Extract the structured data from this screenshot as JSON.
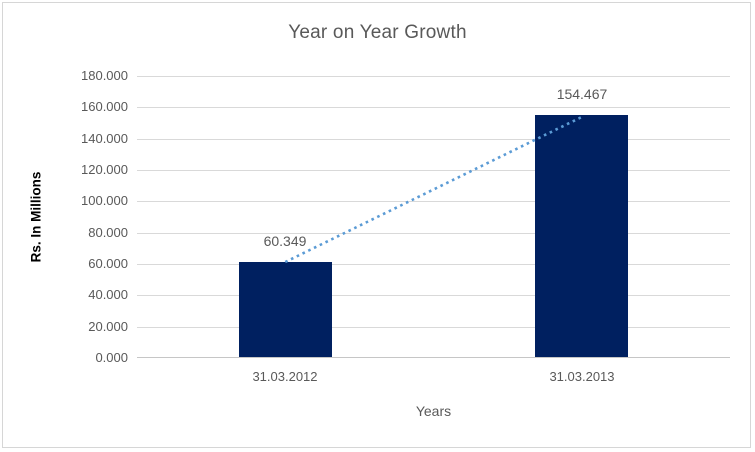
{
  "chart_data": {
    "type": "bar",
    "title": "Year on Year Growth",
    "xlabel": "Years",
    "ylabel": "Rs. In Millions",
    "categories": [
      "31.03.2012",
      "31.03.2013"
    ],
    "values": [
      60.349,
      154.467
    ],
    "value_labels": [
      "60.349",
      "154.467"
    ],
    "ylim": [
      0,
      180
    ],
    "ytick_step": 20,
    "ytick_labels": [
      "180.000",
      "160.000",
      "140.000",
      "120.000",
      "100.000",
      "80.000",
      "60.000",
      "40.000",
      "20.000",
      "0.000"
    ],
    "grid": true,
    "legend": "none",
    "trendline": {
      "style": "dotted",
      "from_value": 60.349,
      "to_value": 154.467,
      "color": "#5b9bd5"
    },
    "colors": {
      "bar": "#002060",
      "text": "#595959",
      "axis_title_text": "#000000",
      "gridline": "#d9d9d9",
      "chart_border": "#d6d6d6",
      "background": "#ffffff"
    }
  }
}
